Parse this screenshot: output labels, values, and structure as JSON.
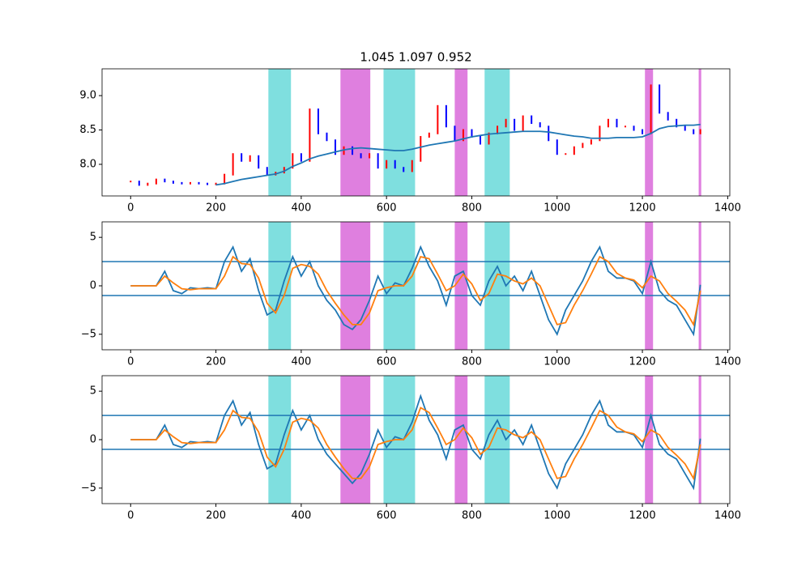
{
  "chart_data": [
    {
      "type": "candlestick",
      "title": "1.045 1.097 0.952",
      "x": [
        0,
        20,
        40,
        60,
        80,
        100,
        120,
        140,
        160,
        180,
        200,
        220,
        240,
        260,
        280,
        300,
        320,
        340,
        360,
        380,
        400,
        420,
        440,
        460,
        480,
        500,
        520,
        540,
        560,
        580,
        600,
        620,
        640,
        660,
        680,
        700,
        720,
        740,
        760,
        780,
        800,
        820,
        840,
        860,
        880,
        900,
        920,
        940,
        960,
        980,
        1000,
        1020,
        1040,
        1060,
        1080,
        1100,
        1120,
        1140,
        1160,
        1180,
        1200,
        1220,
        1240,
        1260,
        1280,
        1300,
        1320,
        1336
      ],
      "series": [
        {
          "color": "#ff0000",
          "down_color": "#0000ff",
          "values": [
            7.75,
            7.7,
            7.72,
            7.78,
            7.75,
            7.73,
            7.72,
            7.73,
            7.72,
            7.71,
            7.72,
            7.85,
            8.15,
            8.05,
            8.12,
            7.95,
            7.85,
            7.88,
            7.95,
            8.15,
            8.05,
            8.8,
            8.45,
            8.35,
            8.15,
            8.25,
            8.15,
            8.1,
            8.15,
            7.95,
            8.05,
            7.95,
            7.9,
            8.05,
            8.4,
            8.45,
            8.85,
            8.55,
            8.35,
            8.5,
            8.4,
            8.3,
            8.45,
            8.55,
            8.65,
            8.5,
            8.7,
            8.6,
            8.55,
            8.35,
            8.15,
            8.15,
            8.25,
            8.3,
            8.35,
            8.55,
            8.65,
            8.55,
            8.55,
            8.5,
            8.45,
            9.15,
            8.75,
            8.65,
            8.55,
            8.5,
            8.45,
            8.5
          ]
        },
        {
          "color": "#1f77b4",
          "values": [
            null,
            null,
            null,
            null,
            null,
            null,
            null,
            null,
            null,
            null,
            7.7,
            7.72,
            7.75,
            7.78,
            7.8,
            7.82,
            7.84,
            7.86,
            7.9,
            7.97,
            8.02,
            8.08,
            8.12,
            8.15,
            8.18,
            8.21,
            8.23,
            8.24,
            8.23,
            8.22,
            8.21,
            8.2,
            8.2,
            8.22,
            8.25,
            8.28,
            8.3,
            8.32,
            8.34,
            8.37,
            8.4,
            8.42,
            8.44,
            8.45,
            8.46,
            8.47,
            8.48,
            8.48,
            8.48,
            8.47,
            8.45,
            8.43,
            8.41,
            8.4,
            8.38,
            8.38,
            8.38,
            8.39,
            8.39,
            8.39,
            8.4,
            8.45,
            8.52,
            8.55,
            8.56,
            8.57,
            8.57,
            8.58
          ]
        }
      ],
      "spans": [
        {
          "range": [
            323,
            376
          ],
          "color": "#7fdfdf"
        },
        {
          "range": [
            593,
            667
          ],
          "color": "#7fdfdf"
        },
        {
          "range": [
            830,
            889
          ],
          "color": "#7fdfdf"
        },
        {
          "range": [
            492,
            562
          ],
          "color": "#df7fdf"
        },
        {
          "range": [
            760,
            790
          ],
          "color": "#df7fdf"
        },
        {
          "range": [
            1206,
            1225
          ],
          "color": "#df7fdf"
        },
        {
          "range": [
            1332,
            1338
          ],
          "color": "#df7fdf"
        }
      ],
      "xlim": [
        -67,
        1405
      ],
      "xticks": [
        0,
        200,
        400,
        600,
        800,
        1000,
        1200,
        1400
      ],
      "ylim": [
        7.54,
        9.39
      ],
      "yticks": [
        {
          "value": 8,
          "label": "8.0"
        },
        {
          "value": 8.5,
          "label": "8.5"
        },
        {
          "value": 9,
          "label": "9.0"
        }
      ]
    },
    {
      "type": "line",
      "x": [
        0,
        20,
        40,
        60,
        80,
        100,
        120,
        140,
        160,
        180,
        200,
        220,
        240,
        260,
        280,
        300,
        320,
        340,
        360,
        380,
        400,
        420,
        440,
        460,
        480,
        500,
        520,
        540,
        560,
        580,
        600,
        620,
        640,
        660,
        680,
        700,
        720,
        740,
        760,
        780,
        800,
        820,
        840,
        860,
        880,
        900,
        920,
        940,
        960,
        980,
        1000,
        1020,
        1040,
        1060,
        1080,
        1100,
        1120,
        1140,
        1160,
        1180,
        1200,
        1220,
        1240,
        1260,
        1280,
        1300,
        1320,
        1336
      ],
      "series": [
        {
          "color": "#1f77b4",
          "values": [
            0,
            0,
            0,
            0,
            1.5,
            -0.5,
            -0.8,
            -0.2,
            -0.3,
            -0.2,
            -0.3,
            2.5,
            4,
            1.5,
            2.8,
            -0.5,
            -3,
            -2.5,
            0.5,
            3,
            1,
            2.5,
            0,
            -1.5,
            -2.5,
            -4,
            -4.5,
            -3.5,
            -1.5,
            1,
            -0.8,
            0.3,
            0,
            1.8,
            4,
            2,
            0.5,
            -2,
            1,
            1.5,
            -1,
            -2,
            0.5,
            2,
            0,
            1,
            -0.5,
            1.5,
            -1,
            -3.5,
            -5,
            -2.5,
            -1,
            0.5,
            2.5,
            4,
            1.5,
            0.8,
            0.8,
            0.5,
            -0.8,
            2.5,
            -0.5,
            -1.5,
            -2,
            -3.5,
            -5,
            0.1
          ]
        },
        {
          "color": "#ff7f0e",
          "values": [
            0,
            0,
            0,
            0,
            1,
            0.3,
            -0.3,
            -0.4,
            -0.3,
            -0.3,
            -0.3,
            1,
            3,
            2.3,
            2.2,
            0.8,
            -1.8,
            -2.8,
            -1,
            1.8,
            2.2,
            2,
            1.2,
            -0.5,
            -1.8,
            -3,
            -4,
            -4,
            -2.8,
            -0.5,
            -0.2,
            0,
            0,
            1,
            3,
            2.8,
            1.2,
            -0.5,
            0,
            1.2,
            0.2,
            -1.5,
            -0.8,
            1.2,
            1,
            0.5,
            0.2,
            0.8,
            0,
            -2,
            -4,
            -3.8,
            -2,
            -0.5,
            1.2,
            3,
            2.5,
            1.3,
            0.8,
            0.6,
            -0.2,
            1,
            0.5,
            -0.8,
            -1.6,
            -2.5,
            -4,
            -0.5
          ]
        }
      ],
      "hlines": [
        2.5,
        -1
      ],
      "hline_color": "#1f77b4",
      "spans": [
        {
          "range": [
            323,
            376
          ],
          "color": "#7fdfdf"
        },
        {
          "range": [
            593,
            667
          ],
          "color": "#7fdfdf"
        },
        {
          "range": [
            830,
            889
          ],
          "color": "#7fdfdf"
        },
        {
          "range": [
            492,
            562
          ],
          "color": "#df7fdf"
        },
        {
          "range": [
            760,
            790
          ],
          "color": "#df7fdf"
        },
        {
          "range": [
            1206,
            1225
          ],
          "color": "#df7fdf"
        },
        {
          "range": [
            1332,
            1338
          ],
          "color": "#df7fdf"
        }
      ],
      "xlim": [
        -67,
        1405
      ],
      "xticks": [
        0,
        200,
        400,
        600,
        800,
        1000,
        1200,
        1400
      ],
      "ylim": [
        -6.6,
        6.6
      ],
      "yticks": [
        {
          "value": -5,
          "label": "−5"
        },
        0,
        5
      ]
    },
    {
      "type": "line",
      "x": [
        0,
        20,
        40,
        60,
        80,
        100,
        120,
        140,
        160,
        180,
        200,
        220,
        240,
        260,
        280,
        300,
        320,
        340,
        360,
        380,
        400,
        420,
        440,
        460,
        480,
        500,
        520,
        540,
        560,
        580,
        600,
        620,
        640,
        660,
        680,
        700,
        720,
        740,
        760,
        780,
        800,
        820,
        840,
        860,
        880,
        900,
        920,
        940,
        960,
        980,
        1000,
        1020,
        1040,
        1060,
        1080,
        1100,
        1120,
        1140,
        1160,
        1180,
        1200,
        1220,
        1240,
        1260,
        1280,
        1300,
        1320,
        1336
      ],
      "series": [
        {
          "color": "#1f77b4",
          "values": [
            0,
            0,
            0,
            0,
            1.5,
            -0.5,
            -0.8,
            -0.2,
            -0.3,
            -0.2,
            -0.3,
            2.5,
            4,
            1.5,
            2.8,
            -0.5,
            -3,
            -2.5,
            0.5,
            3,
            1,
            2.5,
            0,
            -1.5,
            -2.5,
            -3.5,
            -4.5,
            -3.5,
            -1.5,
            1,
            -0.8,
            0.3,
            0,
            1.8,
            4.5,
            2,
            0.5,
            -2,
            1,
            1.5,
            -1,
            -2,
            0.5,
            2,
            0,
            1,
            -0.5,
            1.5,
            -1,
            -3.5,
            -5,
            -2.5,
            -1,
            0.5,
            2.5,
            4,
            1.5,
            0.8,
            0.8,
            0.5,
            -0.8,
            2.5,
            -0.5,
            -1.5,
            -2,
            -3.5,
            -5,
            0.1
          ]
        },
        {
          "color": "#ff7f0e",
          "values": [
            0,
            0,
            0,
            0,
            1,
            0.3,
            -0.3,
            -0.4,
            -0.3,
            -0.3,
            -0.3,
            1,
            3,
            2.3,
            2.2,
            0.8,
            -1.8,
            -2.8,
            -1,
            1.8,
            2.2,
            2,
            1.2,
            -0.5,
            -1.8,
            -3,
            -4,
            -4,
            -2.8,
            -0.5,
            -0.2,
            0,
            0,
            1,
            3.3,
            2.8,
            1.2,
            -0.5,
            0,
            1.2,
            0.2,
            -1.5,
            -0.8,
            1.2,
            1,
            0.5,
            0.2,
            0.8,
            0,
            -2,
            -4,
            -3.8,
            -2,
            -0.5,
            1.2,
            3,
            2.5,
            1.3,
            0.8,
            0.6,
            -0.2,
            1,
            0.5,
            -0.8,
            -1.6,
            -2.5,
            -4,
            -0.5
          ]
        }
      ],
      "hlines": [
        2.5,
        -1
      ],
      "hline_color": "#1f77b4",
      "spans": [
        {
          "range": [
            323,
            376
          ],
          "color": "#7fdfdf"
        },
        {
          "range": [
            593,
            667
          ],
          "color": "#7fdfdf"
        },
        {
          "range": [
            830,
            889
          ],
          "color": "#7fdfdf"
        },
        {
          "range": [
            492,
            562
          ],
          "color": "#df7fdf"
        },
        {
          "range": [
            760,
            790
          ],
          "color": "#df7fdf"
        },
        {
          "range": [
            1206,
            1225
          ],
          "color": "#df7fdf"
        },
        {
          "range": [
            1332,
            1338
          ],
          "color": "#df7fdf"
        }
      ],
      "xlim": [
        -67,
        1405
      ],
      "xticks": [
        0,
        200,
        400,
        600,
        800,
        1000,
        1200,
        1400
      ],
      "ylim": [
        -6.6,
        6.6
      ],
      "yticks": [
        {
          "value": -5,
          "label": "−5"
        },
        0,
        5
      ]
    }
  ]
}
